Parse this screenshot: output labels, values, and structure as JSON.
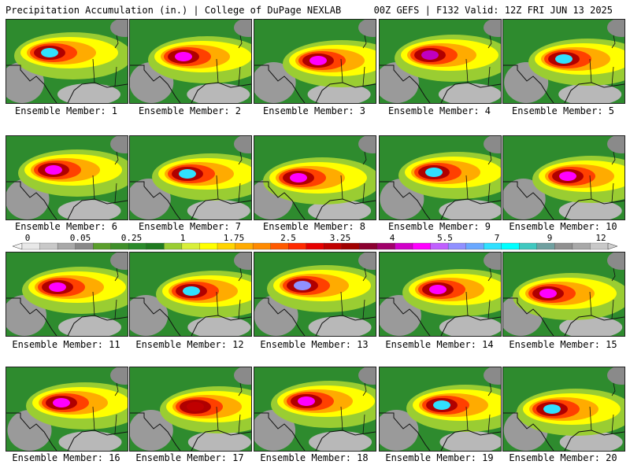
{
  "header": {
    "left": "Precipitation Accumulation (in.) | College of DuPage NEXLAB",
    "right": "00Z GEFS | F132 Valid: 12Z FRI JUN 13 2025"
  },
  "legend": {
    "labels": [
      "0",
      "0.05",
      "0.25",
      "1",
      "1.75",
      "2.5",
      "3.25",
      "4",
      "5.5",
      "7",
      "9",
      "12"
    ],
    "colors": [
      "#e8e8e8",
      "#c8c8c8",
      "#a8a8a8",
      "#888888",
      "#5a9e2c",
      "#3f8f2a",
      "#2a8a2a",
      "#1f7a1f",
      "#9acd32",
      "#d8ef3a",
      "#ffff00",
      "#ffd400",
      "#ffab00",
      "#ff8a00",
      "#ff5a00",
      "#ff2a00",
      "#e60000",
      "#c00000",
      "#a00000",
      "#8b0030",
      "#a0006a",
      "#d000c8",
      "#ff00ff",
      "#c060ff",
      "#9090ff",
      "#6aa8ff",
      "#30e0ff",
      "#00ffff",
      "#40c8c0",
      "#70a0a0",
      "#909090",
      "#a8a8a8",
      "#c8c8c8"
    ]
  },
  "panels": [
    {
      "label": "Ensemble Member: 1",
      "core": "#30e0ff"
    },
    {
      "label": "Ensemble Member: 2",
      "core": "#ff00ff"
    },
    {
      "label": "Ensemble Member: 3",
      "core": "#ff00ff"
    },
    {
      "label": "Ensemble Member: 4",
      "core": "#c000c0"
    },
    {
      "label": "Ensemble Member: 5",
      "core": "#30e0ff"
    },
    {
      "label": "Ensemble Member: 6",
      "core": "#ff00ff"
    },
    {
      "label": "Ensemble Member: 7",
      "core": "#30e0ff"
    },
    {
      "label": "Ensemble Member: 8",
      "core": "#ff00ff"
    },
    {
      "label": "Ensemble Member: 9",
      "core": "#30e0ff"
    },
    {
      "label": "Ensemble Member: 10",
      "core": "#ff00ff"
    },
    {
      "label": "Ensemble Member: 11",
      "core": "#ff00ff"
    },
    {
      "label": "Ensemble Member: 12",
      "core": "#30e0ff"
    },
    {
      "label": "Ensemble Member: 13",
      "core": "#9090ff"
    },
    {
      "label": "Ensemble Member: 14",
      "core": "#ff00ff"
    },
    {
      "label": "Ensemble Member: 15",
      "core": "#ff00ff"
    },
    {
      "label": "Ensemble Member: 16",
      "core": "#ff00ff"
    },
    {
      "label": "Ensemble Member: 17",
      "core": "#c00000"
    },
    {
      "label": "Ensemble Member: 18",
      "core": "#ff00ff"
    },
    {
      "label": "Ensemble Member: 19",
      "core": "#30e0ff"
    },
    {
      "label": "Ensemble Member: 20",
      "core": "#30e0ff"
    }
  ]
}
